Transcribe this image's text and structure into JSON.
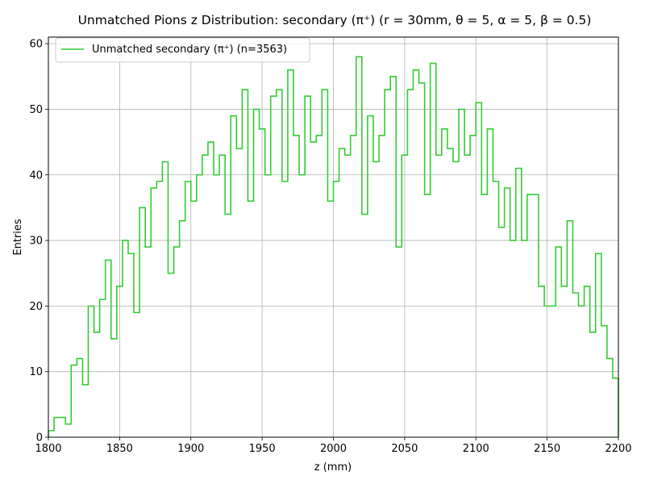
{
  "chart_data": {
    "type": "histogram",
    "title": "Unmatched Pions z Distribution: secondary (π⁺) (r = 30mm, θ = 5, α = 5, β = 0.5)",
    "xlabel": "z (mm)",
    "ylabel": "Entries",
    "xlim": [
      1800,
      2200
    ],
    "ylim": [
      0,
      61
    ],
    "grid": true,
    "legend_position": "top-left",
    "xticks": [
      "1800",
      "1850",
      "1900",
      "1950",
      "2000",
      "2050",
      "2100",
      "2150",
      "2200"
    ],
    "yticks": [
      "0",
      "10",
      "20",
      "30",
      "40",
      "50",
      "60"
    ],
    "bin_width": 4,
    "series": [
      {
        "name": "Unmatched secondary (π⁺) (n=3563)",
        "color": "#33cc33",
        "bin_edges_start": 1800,
        "values": [
          1,
          3,
          3,
          2,
          11,
          12,
          8,
          20,
          16,
          21,
          27,
          15,
          23,
          30,
          28,
          19,
          35,
          29,
          38,
          39,
          42,
          25,
          29,
          33,
          39,
          36,
          40,
          43,
          45,
          40,
          43,
          34,
          49,
          44,
          53,
          36,
          50,
          47,
          40,
          52,
          53,
          39,
          56,
          46,
          40,
          52,
          45,
          46,
          53,
          36,
          39,
          44,
          43,
          46,
          58,
          34,
          49,
          42,
          46,
          53,
          55,
          29,
          43,
          53,
          56,
          54,
          37,
          57,
          43,
          47,
          44,
          42,
          50,
          43,
          46,
          51,
          37,
          47,
          39,
          32,
          38,
          30,
          41,
          30,
          37,
          37,
          23,
          20,
          20,
          29,
          23,
          33,
          22,
          20,
          23,
          16,
          28,
          17,
          12,
          9
        ]
      }
    ]
  }
}
